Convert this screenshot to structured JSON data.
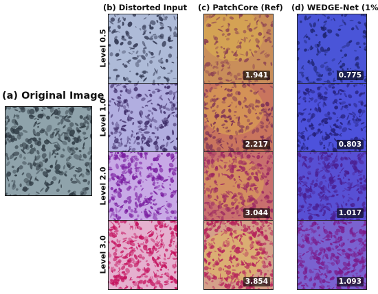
{
  "original": {
    "title": "(a) Original Image"
  },
  "columns": [
    {
      "title": "(b) Distorted Input"
    },
    {
      "title": "(c) PatchCore (Ref)"
    },
    {
      "title": "(d) WEDGE-Net (1%)"
    }
  ],
  "rows": [
    {
      "label": "Level 0.5",
      "patchcore_score": "1.941",
      "wedgenet_score": "0.775"
    },
    {
      "label": "Level 1.0",
      "patchcore_score": "2.217",
      "wedgenet_score": "0.803"
    },
    {
      "label": "Level 2.0",
      "patchcore_score": "3.044",
      "wedgenet_score": "1.017"
    },
    {
      "label": "Level 3.0",
      "patchcore_score": "3.854",
      "wedgenet_score": "1.093"
    }
  ],
  "colors": {
    "original_bg": "#8fa3ab",
    "original_blob": "#2f3b44",
    "distorted_bg": [
      "#aebbd8",
      "#b1aee0",
      "#c8a9e6",
      "#e5b0cf"
    ],
    "distorted_blob": [
      "#2f3550",
      "#3c2a66",
      "#7a1ea0",
      "#c4125e"
    ],
    "patchcore_bg": [
      "#c98e5a",
      "#c9755e",
      "#c8706e",
      "#d4a089"
    ],
    "patchcore_blob": [
      "#8a3f52",
      "#7a2e55",
      "#9b2660",
      "#b5225a"
    ],
    "wedgenet_bg": [
      "#4a55d8",
      "#4d52dc",
      "#5850d4",
      "#7a62d0"
    ],
    "wedgenet_blob": [
      "#1e2470",
      "#25207a",
      "#4a1e90",
      "#7a1a8a"
    ]
  }
}
